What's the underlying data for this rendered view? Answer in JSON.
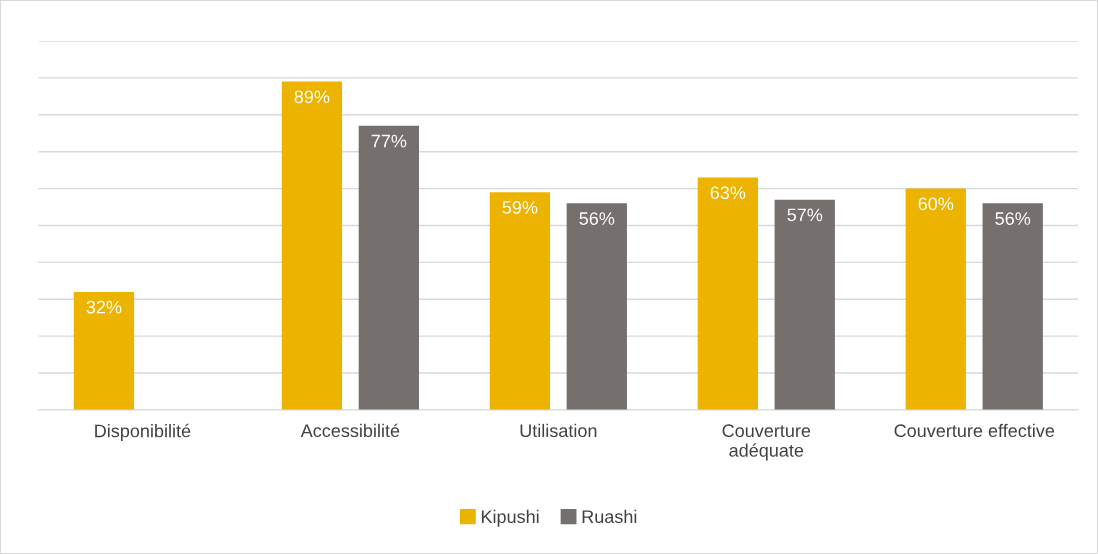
{
  "chart_data": {
    "type": "bar",
    "categories": [
      "Disponibilité",
      "Accessibilité",
      "Utilisation",
      "Couverture\nadéquate",
      "Couverture effective"
    ],
    "series": [
      {
        "name": "Kipushi",
        "color": "#ecb400",
        "values": [
          32,
          89,
          59,
          63,
          60
        ],
        "value_labels": [
          "32%",
          "89%",
          "59%",
          "63%",
          "60%"
        ]
      },
      {
        "name": "Ruashi",
        "color": "#75706d",
        "values": [
          null,
          77,
          56,
          57,
          56
        ],
        "value_labels": [
          null,
          "77%",
          "56%",
          "57%",
          "56%"
        ]
      }
    ],
    "ylim": [
      0,
      100
    ],
    "yticks": [
      {
        "value": 0,
        "label": null
      },
      {
        "value": 10,
        "label": null
      },
      {
        "value": 20,
        "label": null
      },
      {
        "value": 30,
        "label": null
      },
      {
        "value": 40,
        "label": null
      },
      {
        "value": 50,
        "label": null
      },
      {
        "value": 60,
        "label": null
      },
      {
        "value": 70,
        "label": null
      },
      {
        "value": 80,
        "label": null
      },
      {
        "value": 90,
        "label": null
      },
      {
        "value": 100,
        "label": null
      }
    ],
    "tick_labels": "x",
    "grid": "y",
    "legend": "bottom"
  }
}
